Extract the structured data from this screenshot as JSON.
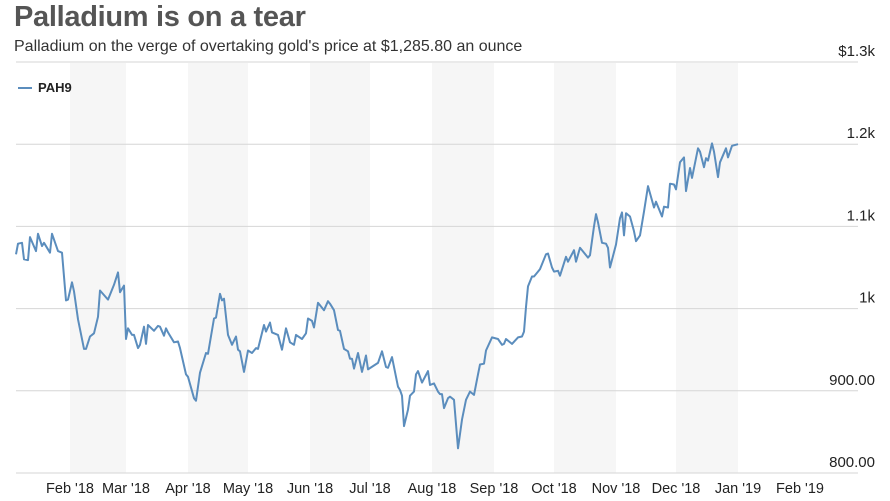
{
  "chart_data": {
    "type": "line",
    "title": "Palladium is on a tear",
    "subtitle": "Palladium on the verge of overtaking gold's price at $1,285.80 an ounce",
    "xlabel": "",
    "ylabel": "",
    "ylim": [
      800,
      1300
    ],
    "x_unit": "days since 2018-01-01",
    "xlim": [
      4,
      400
    ],
    "grid": true,
    "legend_position": "top-left",
    "y_ticks": [
      {
        "value": 1300,
        "label": "$1.3k"
      },
      {
        "value": 1200,
        "label": "1.2k"
      },
      {
        "value": 1100,
        "label": "1.1k"
      },
      {
        "value": 1000,
        "label": "1k"
      },
      {
        "value": 900,
        "label": "900.00"
      },
      {
        "value": 800,
        "label": "800.00"
      }
    ],
    "x_ticks": [
      {
        "day": 31,
        "label": "Feb '18"
      },
      {
        "day": 59,
        "label": "Mar '18"
      },
      {
        "day": 90,
        "label": "Apr '18"
      },
      {
        "day": 120,
        "label": "May '18"
      },
      {
        "day": 151,
        "label": "Jun '18"
      },
      {
        "day": 181,
        "label": "Jul '18"
      },
      {
        "day": 212,
        "label": "Aug '18"
      },
      {
        "day": 243,
        "label": "Sep '18"
      },
      {
        "day": 273,
        "label": "Oct '18"
      },
      {
        "day": 304,
        "label": "Nov '18"
      },
      {
        "day": 334,
        "label": "Dec '18"
      },
      {
        "day": 365,
        "label": "Jan '19"
      },
      {
        "day": 396,
        "label": "Feb '19"
      }
    ],
    "shaded_month_bands": [
      [
        31,
        59
      ],
      [
        90,
        120
      ],
      [
        151,
        181
      ],
      [
        212,
        243
      ],
      [
        273,
        304
      ],
      [
        334,
        365
      ]
    ],
    "series": [
      {
        "name": "PAH9",
        "color": "#5b8dbd",
        "x": [
          4,
          5,
          7,
          8,
          10,
          11,
          14,
          15,
          17,
          18,
          21,
          22,
          25,
          27,
          29,
          30,
          32,
          33,
          35,
          38,
          39,
          41,
          43,
          45,
          46,
          50,
          53,
          55,
          56,
          58,
          59,
          60,
          62,
          63,
          65,
          66,
          68,
          69,
          70,
          73,
          75,
          76,
          78,
          79,
          80,
          83,
          85,
          86,
          89,
          90,
          93,
          94,
          96,
          99,
          100,
          103,
          104,
          106,
          107,
          108,
          110,
          112,
          114,
          115,
          116,
          118,
          120,
          122,
          124,
          125,
          128,
          129,
          131,
          132,
          135,
          137,
          139,
          141,
          143,
          144,
          147,
          149,
          150,
          152,
          153,
          155,
          158,
          160,
          161,
          163,
          165,
          166,
          168,
          170,
          171,
          172,
          173,
          175,
          177,
          179,
          180,
          185,
          187,
          189,
          190,
          192,
          195,
          196,
          197,
          198,
          200,
          201,
          203,
          204,
          205,
          207,
          210,
          211,
          213,
          215,
          216,
          217,
          218,
          220,
          221,
          223,
          225,
          227,
          229,
          231,
          233,
          235,
          236,
          238,
          239,
          242,
          245,
          247,
          248,
          249,
          252,
          255,
          257,
          258,
          259,
          260,
          262,
          263,
          265,
          266,
          269,
          270,
          272,
          273,
          275,
          276,
          279,
          280,
          283,
          284,
          286,
          290,
          291,
          293,
          294,
          295,
          297,
          299,
          300,
          301,
          304,
          306,
          307,
          308,
          309,
          311,
          313,
          314,
          316,
          318,
          320,
          323,
          324,
          327,
          328,
          330,
          331,
          333,
          334,
          336,
          338,
          339,
          341,
          342,
          345,
          346,
          348,
          349,
          350,
          352,
          353,
          355,
          356,
          359,
          360,
          362,
          365
        ],
        "values": [
          1066,
          1079,
          1080,
          1060,
          1059,
          1087,
          1070,
          1091,
          1076,
          1080,
          1068,
          1091,
          1070,
          1068,
          1010,
          1011,
          1032,
          1021,
          987,
          951,
          951,
          966,
          970,
          990,
          1022,
          1011,
          1029,
          1044,
          1020,
          1028,
          963,
          976,
          968,
          968,
          952,
          956,
          978,
          957,
          980,
          973,
          979,
          978,
          967,
          976,
          971,
          959,
          960,
          952,
          920,
          917,
          891,
          888,
          922,
          946,
          945,
          988,
          989,
          1018,
          1010,
          1012,
          968,
          956,
          966,
          950,
          948,
          923,
          949,
          946,
          952,
          951,
          980,
          972,
          983,
          971,
          968,
          950,
          976,
          959,
          956,
          968,
          963,
          970,
          988,
          985,
          977,
          1007,
          998,
          1009,
          1006,
          998,
          974,
          973,
          951,
          948,
          939,
          939,
          927,
          946,
          923,
          943,
          926,
          934,
          948,
          929,
          928,
          941,
          905,
          901,
          894,
          857,
          877,
          894,
          899,
          920,
          924,
          910,
          924,
          907,
          909,
          899,
          896,
          896,
          879,
          891,
          893,
          889,
          830,
          865,
          889,
          899,
          895,
          920,
          932,
          933,
          949,
          965,
          963,
          956,
          957,
          963,
          957,
          965,
          966,
          972,
          1002,
          1027,
          1039,
          1039,
          1045,
          1048,
          1066,
          1067,
          1050,
          1045,
          1046,
          1040,
          1063,
          1057,
          1071,
          1057,
          1074,
          1062,
          1065,
          1100,
          1115,
          1105,
          1080,
          1079,
          1074,
          1050,
          1078,
          1110,
          1117,
          1089,
          1116,
          1112,
          1094,
          1082,
          1089,
          1118,
          1149,
          1123,
          1130,
          1112,
          1124,
          1123,
          1152,
          1151,
          1145,
          1178,
          1184,
          1143,
          1171,
          1159,
          1195,
          1191,
          1172,
          1183,
          1180,
          1201,
          1191,
          1160,
          1178,
          1195,
          1184,
          1198,
          1200
        ]
      }
    ]
  }
}
